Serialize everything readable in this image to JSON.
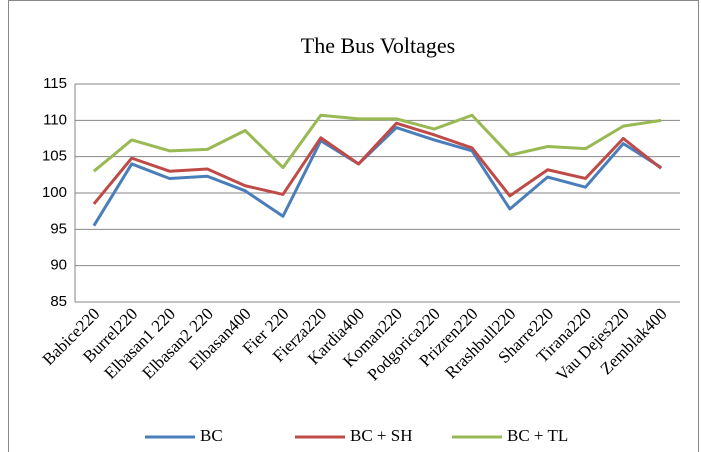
{
  "chart_data": {
    "type": "line",
    "title": "The Bus Voltages",
    "categories": [
      "Babice220",
      "Burrel220",
      "Elbasan1 220",
      "Elbasan2 220",
      "Elbasan400",
      "Fier 220",
      "Fierza220",
      "Kardia400",
      "Koman220",
      "Podgorica220",
      "Prizren220",
      "Rrashbull220",
      "Sharre220",
      "Tirana220",
      "Vau Dejes220",
      "Zemblak400"
    ],
    "series": [
      {
        "name": "BC",
        "color": "#4a7ebb",
        "values": [
          95.5,
          104,
          102,
          102.3,
          100.3,
          96.8,
          107.2,
          104,
          109,
          107.3,
          105.8,
          97.8,
          102.2,
          100.8,
          106.8,
          103.5
        ]
      },
      {
        "name": "BC + SH",
        "color": "#be4b48",
        "values": [
          98.5,
          104.8,
          103,
          103.3,
          101,
          99.8,
          107.6,
          104,
          109.6,
          108,
          106.2,
          99.6,
          103.2,
          102,
          107.5,
          103.4
        ]
      },
      {
        "name": "BC + TL",
        "color": "#98b954",
        "values": [
          103,
          107.3,
          105.8,
          106,
          108.6,
          103.5,
          110.7,
          110.2,
          110.2,
          108.8,
          110.7,
          105.2,
          106.4,
          106.1,
          109.2,
          110
        ]
      }
    ],
    "ylim": [
      85,
      115
    ],
    "yticks": [
      85,
      90,
      95,
      100,
      105,
      110,
      115
    ],
    "grid": true,
    "legend": "bottom"
  }
}
